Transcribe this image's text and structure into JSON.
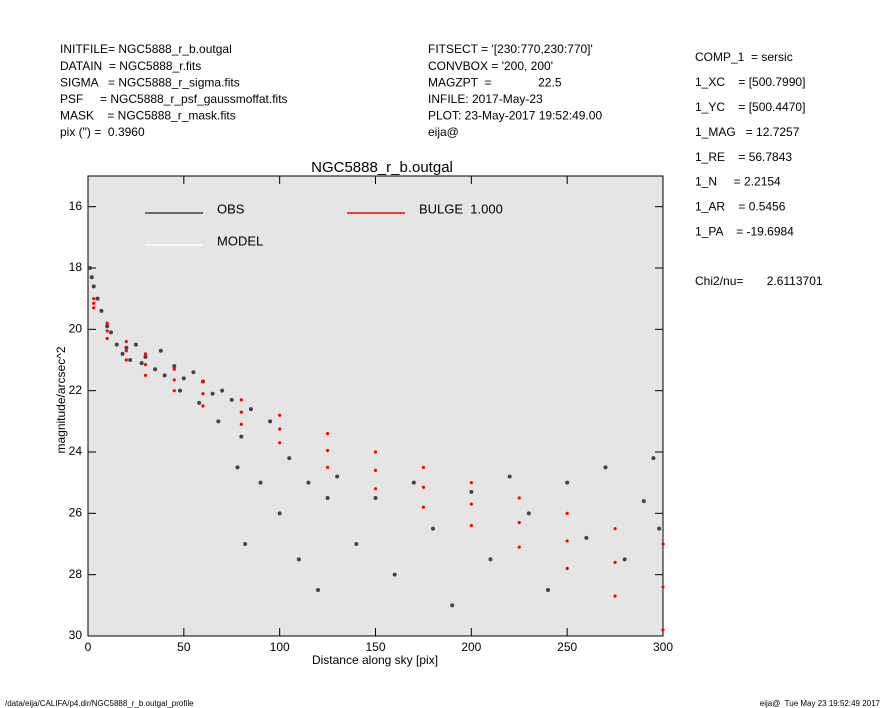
{
  "header": {
    "left": [
      "INITFILE= NGC5888_r_b.outgal",
      "DATAIN  = NGC5888_r.fits",
      "SIGMA   = NGC5888_r_sigma.fits",
      "PSF     = NGC5888_r_psf_gaussmoffat.fits",
      "MASK    = NGC5888_r_mask.fits",
      "pix (\") =  0.3960"
    ],
    "middle": [
      "FITSECT = '[230:770,230:770]'",
      "CONVBOX = '200, 200'",
      "MAGZPT  =              22.5",
      "INFILE: 2017-May-23",
      "PLOT: 23-May-2017 19:52:49.00",
      "eija@"
    ],
    "right": [
      "COMP_1  = sersic",
      "1_XC    = [500.7990]",
      "1_YC    = [500.4470]",
      "1_MAG   = 12.7257",
      "1_RE    = 56.7843",
      "1_N     = 2.2154",
      "1_AR    = 0.5456",
      "1_PA    = -19.6984"
    ],
    "chi2": "Chi2/nu=       2.6113701"
  },
  "footer": {
    "left": "/data/eija/CALIFA/p4.dir/NGC5888_r_b.outgal_profile",
    "right": "eija@  Tue May 23 19:52:49 2017"
  },
  "chart_data": {
    "type": "scatter",
    "title": "NGC5888_r_b.outgal",
    "x_label": "Distance along sky [pix]",
    "y_label": "magnitude/arcsec^2",
    "xlim": [
      0,
      300
    ],
    "ylim": [
      15,
      30
    ],
    "y_inverted": true,
    "xticks": [
      0,
      50,
      100,
      150,
      200,
      250,
      300
    ],
    "yticks": [
      16,
      18,
      20,
      22,
      24,
      26,
      28,
      30
    ],
    "series": [
      {
        "name": "OBS",
        "color": "#444444",
        "x": [
          1,
          2,
          3,
          5,
          7,
          10,
          12,
          15,
          18,
          20,
          22,
          25,
          28,
          30,
          35,
          38,
          40,
          45,
          48,
          50,
          55,
          58,
          60,
          65,
          68,
          70,
          75,
          78,
          80,
          82,
          85,
          90,
          95,
          100,
          105,
          110,
          115,
          120,
          125,
          130,
          140,
          150,
          160,
          170,
          180,
          190,
          200,
          210,
          220,
          230,
          240,
          250,
          260,
          270,
          280,
          290,
          295,
          298
        ],
        "values": [
          18.0,
          18.3,
          18.6,
          19.0,
          19.4,
          19.9,
          20.1,
          20.5,
          20.8,
          20.6,
          21.0,
          20.5,
          21.1,
          20.9,
          21.3,
          20.7,
          21.5,
          21.2,
          22.0,
          21.6,
          21.4,
          22.4,
          21.7,
          22.1,
          23.0,
          22.0,
          22.3,
          24.5,
          23.5,
          27.0,
          22.6,
          25.0,
          23.0,
          26.0,
          24.2,
          27.5,
          25.0,
          28.5,
          25.5,
          24.8,
          27.0,
          25.5,
          28.0,
          25.0,
          26.5,
          29.0,
          25.3,
          27.5,
          24.8,
          26.0,
          28.5,
          25.0,
          26.8,
          24.5,
          27.5,
          25.6,
          24.2,
          26.5
        ]
      },
      {
        "name": "MODEL",
        "color": "#ffffff",
        "x": [],
        "values": []
      },
      {
        "name": "BULGE  1.000",
        "color": "#ff0000",
        "x": [
          3,
          10,
          20,
          30,
          45,
          60,
          80,
          100,
          125,
          150,
          175,
          200,
          225,
          250,
          275,
          300,
          3,
          10,
          20,
          30,
          45,
          60,
          80,
          100,
          125,
          150,
          175,
          200,
          225,
          250,
          275,
          300,
          3,
          10,
          20,
          30,
          45,
          60,
          80,
          100,
          125,
          150,
          175,
          200,
          225,
          250,
          275,
          300
        ],
        "values": [
          19.0,
          19.8,
          20.4,
          20.8,
          21.3,
          21.7,
          22.3,
          22.8,
          23.4,
          24.0,
          24.5,
          25.0,
          25.5,
          26.0,
          26.5,
          27.0,
          19.15,
          20.05,
          20.7,
          21.15,
          21.65,
          22.1,
          22.7,
          23.25,
          23.95,
          24.6,
          25.15,
          25.7,
          26.3,
          26.9,
          27.6,
          28.4,
          19.3,
          20.3,
          21.0,
          21.5,
          22.0,
          22.5,
          23.1,
          23.7,
          24.5,
          25.2,
          25.8,
          26.4,
          27.1,
          27.8,
          28.7,
          29.8
        ]
      }
    ]
  }
}
